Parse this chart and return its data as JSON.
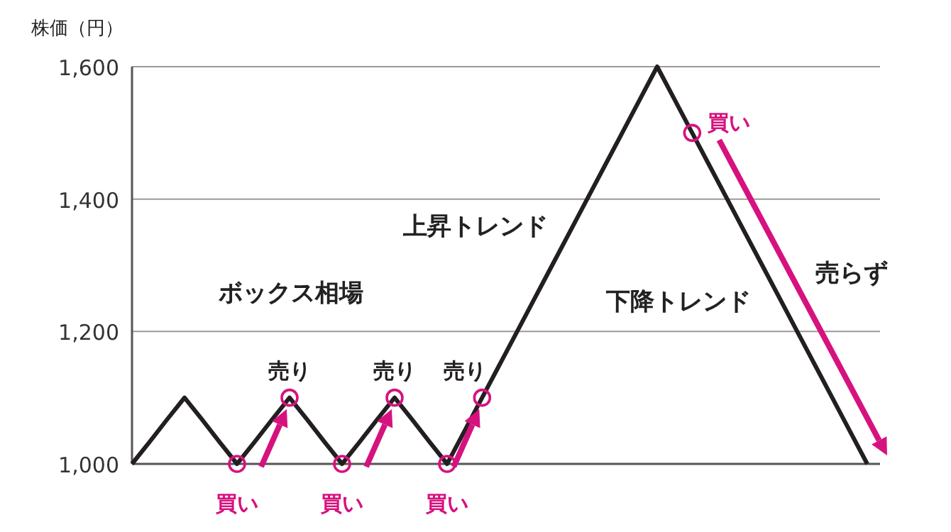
{
  "chart_data": {
    "type": "line",
    "ylabel": "株価（円）",
    "categories": [
      null,
      null,
      null,
      null,
      null,
      null,
      null,
      null,
      null,
      null,
      null,
      null,
      null,
      null,
      null,
      null,
      null,
      null,
      null,
      null,
      null,
      null,
      null,
      null,
      null,
      null,
      null,
      null,
      null,
      null,
      null,
      null,
      null,
      null,
      null,
      null,
      null,
      null,
      null,
      null,
      null,
      null,
      null
    ],
    "ylim": [
      1000,
      1600
    ],
    "yticks": [
      {
        "value": 1000,
        "label": "1,000"
      },
      {
        "value": 1200,
        "label": "1,200"
      },
      {
        "value": 1400,
        "label": "1,400"
      },
      {
        "value": 1600,
        "label": "1,600"
      }
    ],
    "grid": "y",
    "tick_labels": "y",
    "series": [
      {
        "color": "#231f20",
        "values": [
          1000,
          1033,
          1067,
          1100,
          1067,
          1033,
          1000,
          1033,
          1067,
          1100,
          1067,
          1033,
          1000,
          1033,
          1067,
          1100,
          1067,
          1033,
          1000,
          1050,
          1100,
          1150,
          1200,
          1250,
          1300,
          1350,
          1400,
          1450,
          1500,
          1550,
          1600,
          1550,
          1500,
          1450,
          1400,
          1350,
          1300,
          1250,
          1200,
          1150,
          1100,
          1050,
          1000
        ]
      },
      {
        "type": "scatter",
        "marker": "circle",
        "color": "#d6127f",
        "values": [
          null,
          null,
          null,
          null,
          null,
          null,
          1000,
          null,
          null,
          null,
          null,
          null,
          1000,
          null,
          null,
          null,
          null,
          null,
          1000,
          null,
          null,
          null,
          null,
          null,
          null,
          null,
          null,
          null,
          null,
          null,
          null,
          null,
          1500,
          null,
          null,
          null,
          null,
          null,
          null,
          null,
          null,
          null,
          null
        ],
        "value_labels": [
          null,
          null,
          null,
          null,
          null,
          null,
          "買い",
          null,
          null,
          null,
          null,
          null,
          "買い",
          null,
          null,
          null,
          null,
          null,
          "買い",
          null,
          null,
          null,
          null,
          null,
          null,
          null,
          null,
          null,
          null,
          null,
          null,
          null,
          "買い",
          null,
          null,
          null,
          null,
          null,
          null,
          null,
          null,
          null,
          null
        ]
      },
      {
        "type": "scatter",
        "marker": "circle",
        "color": "#d6127f",
        "values": [
          null,
          null,
          null,
          null,
          null,
          null,
          null,
          null,
          null,
          1100,
          null,
          null,
          null,
          null,
          null,
          1100,
          null,
          null,
          null,
          null,
          1100,
          null,
          null,
          null,
          null,
          null,
          null,
          null,
          null,
          null,
          null,
          null,
          null,
          null,
          null,
          null,
          null,
          null,
          null,
          null,
          null,
          null,
          null
        ],
        "value_labels": [
          null,
          null,
          null,
          null,
          null,
          null,
          null,
          null,
          null,
          "売り",
          null,
          null,
          null,
          null,
          null,
          "売り",
          null,
          null,
          null,
          null,
          "売り",
          null,
          null,
          null,
          null,
          null,
          null,
          null,
          null,
          null,
          null,
          null,
          null,
          null,
          null,
          null,
          null,
          null,
          null,
          null,
          null,
          null,
          null
        ]
      }
    ],
    "annotations": [
      "ボックス相場",
      "上昇トレンド",
      "下降トレンド",
      "売らず"
    ]
  }
}
